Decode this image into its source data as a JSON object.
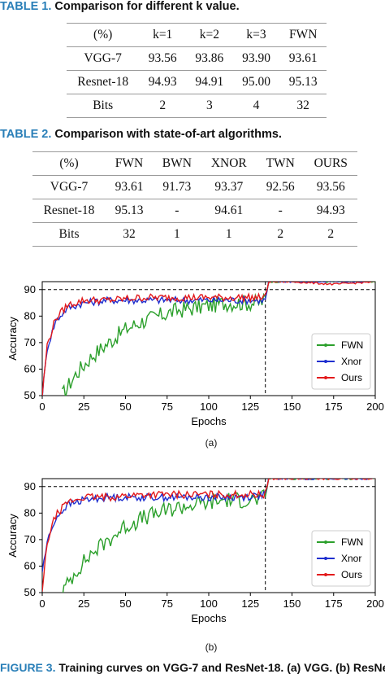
{
  "table1": {
    "label": "TABLE 1.",
    "caption": "Comparison for different k value.",
    "headers": [
      "(%)",
      "k=1",
      "k=2",
      "k=3",
      "FWN"
    ],
    "rows": [
      [
        "VGG-7",
        "93.56",
        "93.86",
        "93.90",
        "93.61"
      ],
      [
        "Resnet-18",
        "94.93",
        "94.91",
        "95.00",
        "95.13"
      ],
      [
        "Bits",
        "2",
        "3",
        "4",
        "32"
      ]
    ]
  },
  "table2": {
    "label": "TABLE 2.",
    "caption": "Comparison with state-of-art algorithms.",
    "headers": [
      "(%)",
      "FWN",
      "BWN",
      "XNOR",
      "TWN",
      "OURS"
    ],
    "rows": [
      [
        "VGG-7",
        "93.61",
        "91.73",
        "93.37",
        "92.56",
        "93.56"
      ],
      [
        "Resnet-18",
        "95.13",
        "-",
        "94.61",
        "-",
        "94.93"
      ],
      [
        "Bits",
        "32",
        "1",
        "1",
        "2",
        "2"
      ]
    ]
  },
  "plots": [
    {
      "panel": "(a)"
    },
    {
      "panel": "(b)"
    }
  ],
  "figure_caption": {
    "label": "FIGURE 3.",
    "text": "Training curves on VGG-7 and ResNet-18. (a) VGG. (b) ResNet"
  },
  "chart_data": [
    {
      "type": "line",
      "xlabel": "Epochs",
      "ylabel": "Accuracy",
      "xlim": [
        0,
        200
      ],
      "ylim": [
        50,
        93
      ],
      "xticks": [
        0,
        25,
        50,
        75,
        100,
        125,
        150,
        175,
        200
      ],
      "yticks": [
        50,
        60,
        70,
        80,
        90
      ],
      "grid": false,
      "hlines": [
        90,
        93
      ],
      "legend_position": "lower-right",
      "series": [
        {
          "name": "FWN",
          "color": "#2ca02c",
          "marker": "dot",
          "x": [
            12,
            20,
            30,
            40,
            50,
            60,
            70,
            80,
            90,
            100,
            110,
            120,
            130,
            134,
            136,
            150,
            175,
            200
          ],
          "y": [
            50,
            58,
            65,
            70,
            75,
            78,
            80,
            82,
            83,
            84,
            85,
            85,
            85,
            86,
            93,
            93,
            93,
            93
          ]
        },
        {
          "name": "Xnor",
          "color": "#1f2fcf",
          "marker": "dot",
          "x": [
            0,
            3,
            8,
            15,
            25,
            40,
            60,
            80,
            100,
            120,
            134,
            136,
            150,
            175,
            200
          ],
          "y": [
            50,
            68,
            78,
            83,
            85,
            86,
            86,
            86,
            86,
            86,
            86,
            93,
            93,
            93,
            93
          ]
        },
        {
          "name": "Ours",
          "color": "#e31a1c",
          "marker": "dot",
          "x": [
            0,
            3,
            8,
            15,
            25,
            40,
            60,
            80,
            100,
            120,
            134,
            136,
            150,
            175,
            200
          ],
          "y": [
            50,
            69,
            79,
            84,
            86,
            86,
            87,
            87,
            87,
            87,
            87,
            93,
            93,
            92,
            93
          ]
        }
      ]
    },
    {
      "type": "line",
      "xlabel": "Epochs",
      "ylabel": "Accuracy",
      "xlim": [
        0,
        200
      ],
      "ylim": [
        50,
        93
      ],
      "xticks": [
        0,
        25,
        50,
        75,
        100,
        125,
        150,
        175,
        200
      ],
      "yticks": [
        50,
        60,
        70,
        80,
        90
      ],
      "grid": false,
      "hlines": [
        90,
        93
      ],
      "legend_position": "lower-right",
      "series": [
        {
          "name": "FWN",
          "color": "#2ca02c",
          "marker": "dot",
          "x": [
            12,
            20,
            30,
            40,
            50,
            60,
            70,
            80,
            90,
            100,
            110,
            120,
            130,
            134,
            136,
            150,
            175,
            200
          ],
          "y": [
            50,
            58,
            65,
            70,
            75,
            78,
            80,
            82,
            83,
            84,
            85,
            85,
            85,
            86,
            93,
            93,
            93,
            93
          ]
        },
        {
          "name": "Xnor",
          "color": "#1f2fcf",
          "marker": "dot",
          "x": [
            0,
            3,
            8,
            15,
            25,
            40,
            60,
            80,
            100,
            120,
            134,
            136,
            150,
            175,
            200
          ],
          "y": [
            58,
            69,
            78,
            83,
            85,
            86,
            86,
            86,
            86,
            86,
            87,
            93,
            93,
            93,
            93
          ]
        },
        {
          "name": "Ours",
          "color": "#e31a1c",
          "marker": "dot",
          "x": [
            0,
            3,
            8,
            15,
            25,
            40,
            60,
            80,
            100,
            120,
            134,
            136,
            150,
            175,
            200
          ],
          "y": [
            50,
            69,
            79,
            84,
            86,
            86,
            87,
            87,
            87,
            87,
            87,
            93,
            93,
            93,
            93
          ]
        }
      ]
    }
  ]
}
